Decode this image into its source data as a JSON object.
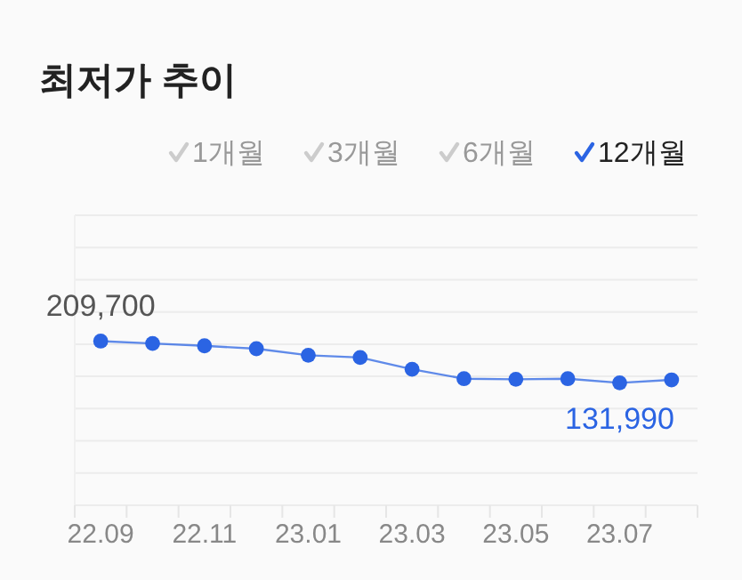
{
  "chart_data": {
    "type": "line",
    "title": "최저가 추이",
    "annotations": [
      "1개월",
      "3개월",
      "6개월",
      "12개월"
    ],
    "categories": [
      "22.09",
      null,
      "22.11",
      null,
      "23.01",
      null,
      "23.03",
      null,
      "23.05",
      null,
      "23.07",
      null
    ],
    "series": [
      {
        "color": "#2b64e3",
        "values": [
          209700,
          205300,
          200900,
          195500,
          183400,
          179100,
          157200,
          139700,
          138600,
          139700,
          131990,
          137500
        ],
        "value_labels": [
          "209,700",
          null,
          null,
          null,
          null,
          null,
          null,
          null,
          null,
          null,
          "131,990",
          null
        ]
      }
    ],
    "ylim": [
      -96000,
      444000
    ],
    "yticks": [
      {
        "value": -96000,
        "label": null
      },
      {
        "value": -36000,
        "label": null
      },
      {
        "value": 24000,
        "label": null
      },
      {
        "value": 84000,
        "label": null
      },
      {
        "value": 144000,
        "label": null
      },
      {
        "value": 204000,
        "label": null
      },
      {
        "value": 264000,
        "label": null
      },
      {
        "value": 324000,
        "label": null
      },
      {
        "value": 384000,
        "label": null
      },
      {
        "value": 444000,
        "label": null
      }
    ],
    "grid": true,
    "marker": "circle",
    "line_style": "solid"
  }
}
